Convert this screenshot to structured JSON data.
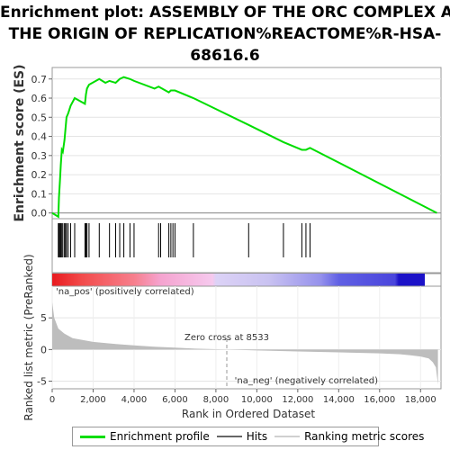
{
  "title_lines": [
    "Enrichment plot: ASSEMBLY OF THE ORC COMPLEX AT",
    "THE ORIGIN OF REPLICATION%REACTOME%R-HSA-",
    "68616.6"
  ],
  "colors": {
    "es_line": "#00dd00",
    "hits": "#000000",
    "metric_fill": "#bdbdbd",
    "pos_label": "#e8191e",
    "neg_label": "#2d2dd8",
    "zero_line": "#bbbbbb"
  },
  "legend": {
    "items": [
      {
        "label": "Enrichment profile",
        "color": "#00dd00",
        "style": "line"
      },
      {
        "label": "Hits",
        "color": "#666666",
        "style": "line"
      },
      {
        "label": "Ranking metric scores",
        "color": "#d0d0d0",
        "style": "line"
      }
    ]
  },
  "chart_data": [
    {
      "type": "line",
      "name": "enrichment-profile",
      "ylabel": "Enrichment score (ES)",
      "ylim": [
        -0.03,
        0.76
      ],
      "xlim": [
        0,
        19000
      ],
      "yticks": [
        0.0,
        0.1,
        0.2,
        0.3,
        0.4,
        0.5,
        0.6,
        0.7
      ],
      "ytick_labels": [
        "0.0",
        "0.1",
        "0.2",
        "0.3",
        "0.4",
        "0.5",
        "0.6",
        "0.7"
      ],
      "grid": true,
      "x": [
        0,
        300,
        330,
        380,
        420,
        470,
        520,
        600,
        650,
        700,
        780,
        900,
        1100,
        1600,
        1650,
        1700,
        1800,
        2300,
        2600,
        2800,
        3100,
        3300,
        3500,
        3800,
        4000,
        5000,
        5200,
        5700,
        5800,
        5900,
        6000,
        6900,
        9600,
        11300,
        12200,
        12400,
        12600,
        18800
      ],
      "y": [
        0.0,
        -0.02,
        0.08,
        0.17,
        0.25,
        0.33,
        0.32,
        0.38,
        0.44,
        0.5,
        0.52,
        0.56,
        0.6,
        0.57,
        0.62,
        0.65,
        0.67,
        0.7,
        0.68,
        0.69,
        0.68,
        0.7,
        0.71,
        0.7,
        0.69,
        0.65,
        0.66,
        0.63,
        0.64,
        0.64,
        0.64,
        0.6,
        0.46,
        0.37,
        0.33,
        0.33,
        0.34,
        0.0
      ]
    },
    {
      "type": "scatter",
      "name": "hits",
      "x": [
        300,
        330,
        380,
        420,
        470,
        520,
        600,
        650,
        700,
        780,
        900,
        1100,
        1600,
        1650,
        1700,
        1800,
        2300,
        2800,
        3100,
        3300,
        3500,
        3800,
        4000,
        5200,
        5300,
        5700,
        5800,
        5900,
        6000,
        6900,
        9600,
        11300,
        12200,
        12400,
        12600
      ]
    },
    {
      "type": "area",
      "name": "ranking-metric",
      "ylabel": "Ranked list metric (PreRanked)",
      "xlabel": "Rank in Ordered Dataset",
      "ylim": [
        -6.2,
        10.0
      ],
      "yticks": [
        -5,
        0,
        5
      ],
      "ytick_labels": [
        "-5",
        "0",
        "5"
      ],
      "xticks": [
        0,
        2000,
        4000,
        6000,
        8000,
        10000,
        12000,
        14000,
        16000,
        18000
      ],
      "xtick_labels": [
        "0",
        "2,000",
        "4,000",
        "6,000",
        "8,000",
        "10,000",
        "12,000",
        "14,000",
        "16,000",
        "18,000"
      ],
      "x": [
        0,
        100,
        300,
        600,
        1000,
        2000,
        3000,
        4000,
        5000,
        6000,
        7000,
        8533,
        10000,
        12000,
        14000,
        16000,
        17000,
        17500,
        18000,
        18400,
        18600,
        18750,
        18850
      ],
      "y": [
        7.5,
        5.0,
        3.3,
        2.5,
        1.8,
        1.2,
        0.9,
        0.65,
        0.45,
        0.3,
        0.15,
        0.0,
        -0.15,
        -0.3,
        -0.45,
        -0.6,
        -0.75,
        -0.9,
        -1.1,
        -1.4,
        -2.0,
        -2.8,
        -5.5
      ],
      "zero_cross_label": "Zero cross at 8533",
      "zero_cross": 8533,
      "pos_label": "'na_pos' (positively correlated)",
      "neg_label": "'na_neg' (negatively correlated)"
    }
  ]
}
